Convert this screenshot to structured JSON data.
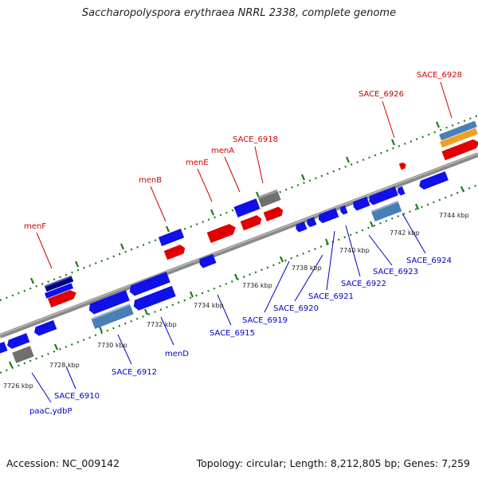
{
  "title": "Saccharopolyspora erythraea NRRL 2338, complete genome",
  "footer": {
    "accession": "Accession: NC_009142",
    "summary": "Topology: circular; Length: 8,212,805 bp; Genes: 7,259"
  },
  "colors": {
    "forward_gene": "#e00000",
    "cds_blue": "#1010e8",
    "cds_steel": "#4a7fb5",
    "navy": "#000080",
    "grey": "#707070",
    "orange": "#f0a020",
    "backbone": "#8a8a8a",
    "tick": "#1a7a1a",
    "label_red": "#d00000",
    "label_blue": "#0000c8"
  },
  "kbp_labels": [
    "7726 kbp",
    "7728 kbp",
    "7730 kbp",
    "7732 kbp",
    "7734 kbp",
    "7736 kbp",
    "7738 kbp",
    "7740 kbp",
    "7742 kbp",
    "7744 kbp"
  ],
  "gene_labels_top": [
    "menF",
    "menB",
    "menE",
    "menA",
    "SACE_6918",
    "SACE_6926",
    "SACE_6928"
  ],
  "gene_labels_bottom": [
    "paaC,ydbP",
    "SACE_6910",
    "SACE_6912",
    "menD",
    "SACE_6915",
    "SACE_6919",
    "SACE_6920",
    "SACE_6921",
    "SACE_6922",
    "SACE_6923",
    "SACE_6924"
  ]
}
